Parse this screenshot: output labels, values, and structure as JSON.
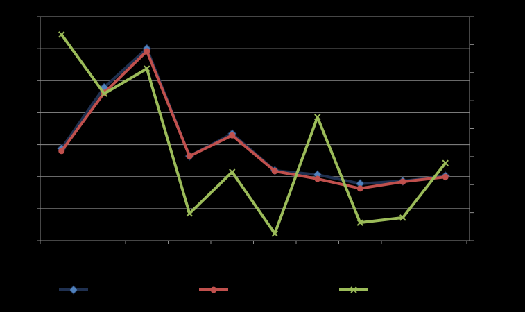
{
  "chart_data": {
    "type": "line",
    "categories": [
      null,
      null,
      null,
      null,
      null,
      null,
      null,
      null,
      null,
      null
    ],
    "ylim": [
      0,
      7
    ],
    "yticks": [
      0,
      1,
      2,
      3,
      4,
      5,
      6,
      7
    ],
    "y2lim": [
      0,
      8
    ],
    "y2ticks": [
      0,
      1,
      2,
      3,
      4,
      5,
      6,
      7,
      8
    ],
    "grid": true,
    "legend": "bottom",
    "series": [
      {
        "color": "#4f81bd",
        "line_color": "#1f3050",
        "marker": "diamond",
        "values": [
          2.88,
          4.79,
          6.0,
          2.64,
          3.34,
          2.19,
          2.06,
          1.78,
          1.86,
          2.02
        ]
      },
      {
        "color": "#c0504d",
        "line_color": "#c0504d",
        "marker": "circle",
        "values": [
          2.8,
          4.62,
          5.92,
          2.64,
          3.29,
          2.17,
          1.93,
          1.63,
          1.84,
          1.99
        ]
      },
      {
        "color": "#9bbb59",
        "line_color": "#9bbb59",
        "marker": "x",
        "axis": "y2",
        "values": [
          7.36,
          5.25,
          6.14,
          0.97,
          2.45,
          0.25,
          4.41,
          0.64,
          0.82,
          2.77
        ]
      }
    ]
  }
}
